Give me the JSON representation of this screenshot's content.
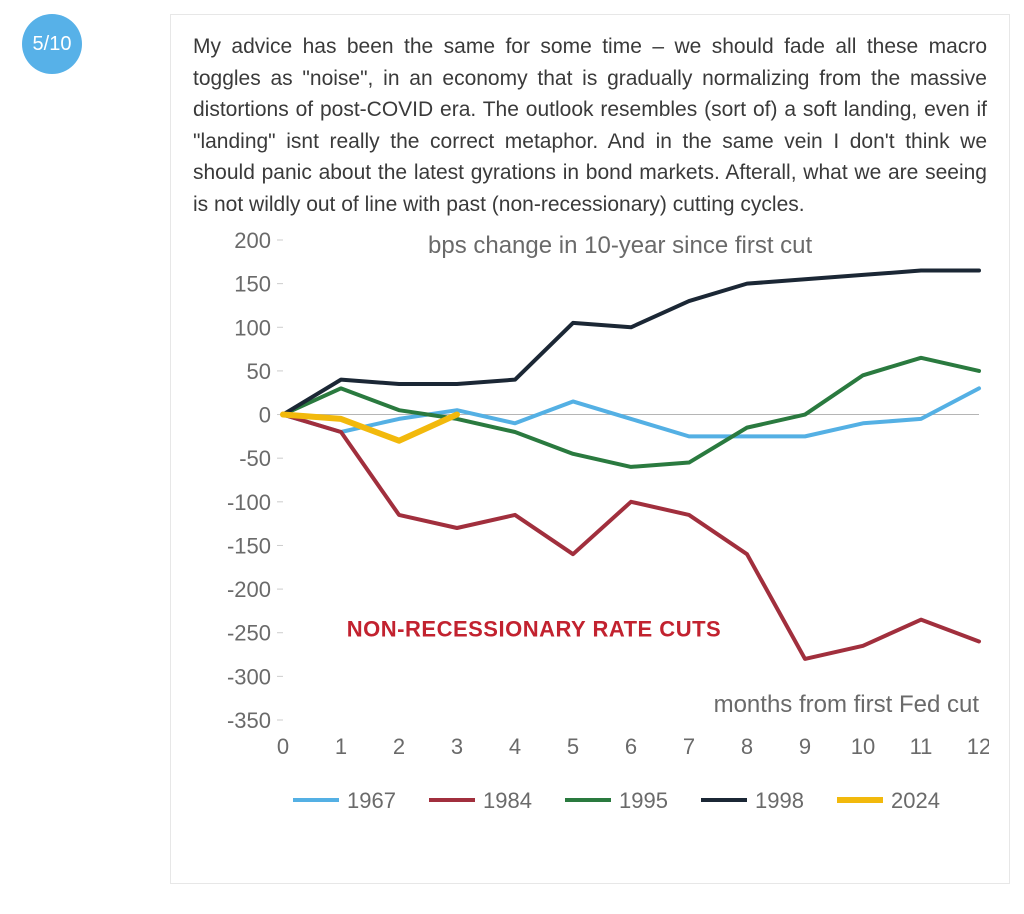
{
  "badge": {
    "text": "5/10",
    "bg_color": "#57b1e8",
    "text_color": "#ffffff"
  },
  "paragraph": "My advice has been the same for some time – we should fade all these macro toggles as \"noise\", in an economy that is gradually normalizing from the massive distortions of post-COVID era. The outlook resembles (sort of) a soft landing, even if \"landing\" isnt really the correct metaphor. And in the same vein I don't think we should panic about the latest gyrations in bond markets. Afterall, what we are seeing is not wildly out of line with past (non-recessionary) cutting cycles.",
  "chart": {
    "type": "line",
    "subtitle": "bps change in 10-year since first cut",
    "xlabel": "months from first Fed cut",
    "annotation": {
      "text": "NON-RECESSIONARY RATE CUTS",
      "color": "#c2222f"
    },
    "background_color": "#ffffff",
    "axis_font_color": "#6a6a6a",
    "grid_color": "#cccccc",
    "zero_line_color": "#b5b5b5",
    "label_fontsize": 22,
    "subtitle_fontsize": 24,
    "ylim": [
      -350,
      200
    ],
    "ytick_step": 50,
    "yticks": [
      200,
      150,
      100,
      50,
      0,
      -50,
      -100,
      -150,
      -200,
      -250,
      -300,
      -350
    ],
    "xlim": [
      0,
      12
    ],
    "xtick_step": 1,
    "xticks": [
      0,
      1,
      2,
      3,
      4,
      5,
      6,
      7,
      8,
      9,
      10,
      11,
      12
    ],
    "line_width": 4,
    "series": [
      {
        "name": "1967",
        "color": "#54b0e4",
        "x": [
          0,
          1,
          2,
          3,
          4,
          5,
          6,
          7,
          8,
          9,
          10,
          11,
          12
        ],
        "y": [
          0,
          -20,
          -5,
          5,
          -10,
          15,
          -5,
          -25,
          -25,
          -25,
          -10,
          -5,
          30
        ]
      },
      {
        "name": "1984",
        "color": "#a12f3d",
        "x": [
          0,
          1,
          2,
          3,
          4,
          5,
          6,
          7,
          8,
          9,
          10,
          11,
          12
        ],
        "y": [
          0,
          -20,
          -115,
          -130,
          -115,
          -160,
          -100,
          -115,
          -160,
          -280,
          -265,
          -235,
          -260
        ]
      },
      {
        "name": "1995",
        "color": "#2a7a3f",
        "x": [
          0,
          1,
          2,
          3,
          4,
          5,
          6,
          7,
          8,
          9,
          10,
          11,
          12
        ],
        "y": [
          0,
          30,
          5,
          -5,
          -20,
          -45,
          -60,
          -55,
          -15,
          0,
          45,
          65,
          50
        ]
      },
      {
        "name": "1998",
        "color": "#1b2735",
        "x": [
          0,
          1,
          2,
          3,
          4,
          5,
          6,
          7,
          8,
          9,
          10,
          11,
          12
        ],
        "y": [
          0,
          40,
          35,
          35,
          40,
          105,
          100,
          130,
          150,
          155,
          160,
          165,
          165
        ]
      },
      {
        "name": "2024",
        "color": "#f2b90c",
        "x": [
          0,
          1,
          2,
          3
        ],
        "y": [
          0,
          -5,
          -30,
          0
        ],
        "width": 6
      }
    ]
  }
}
